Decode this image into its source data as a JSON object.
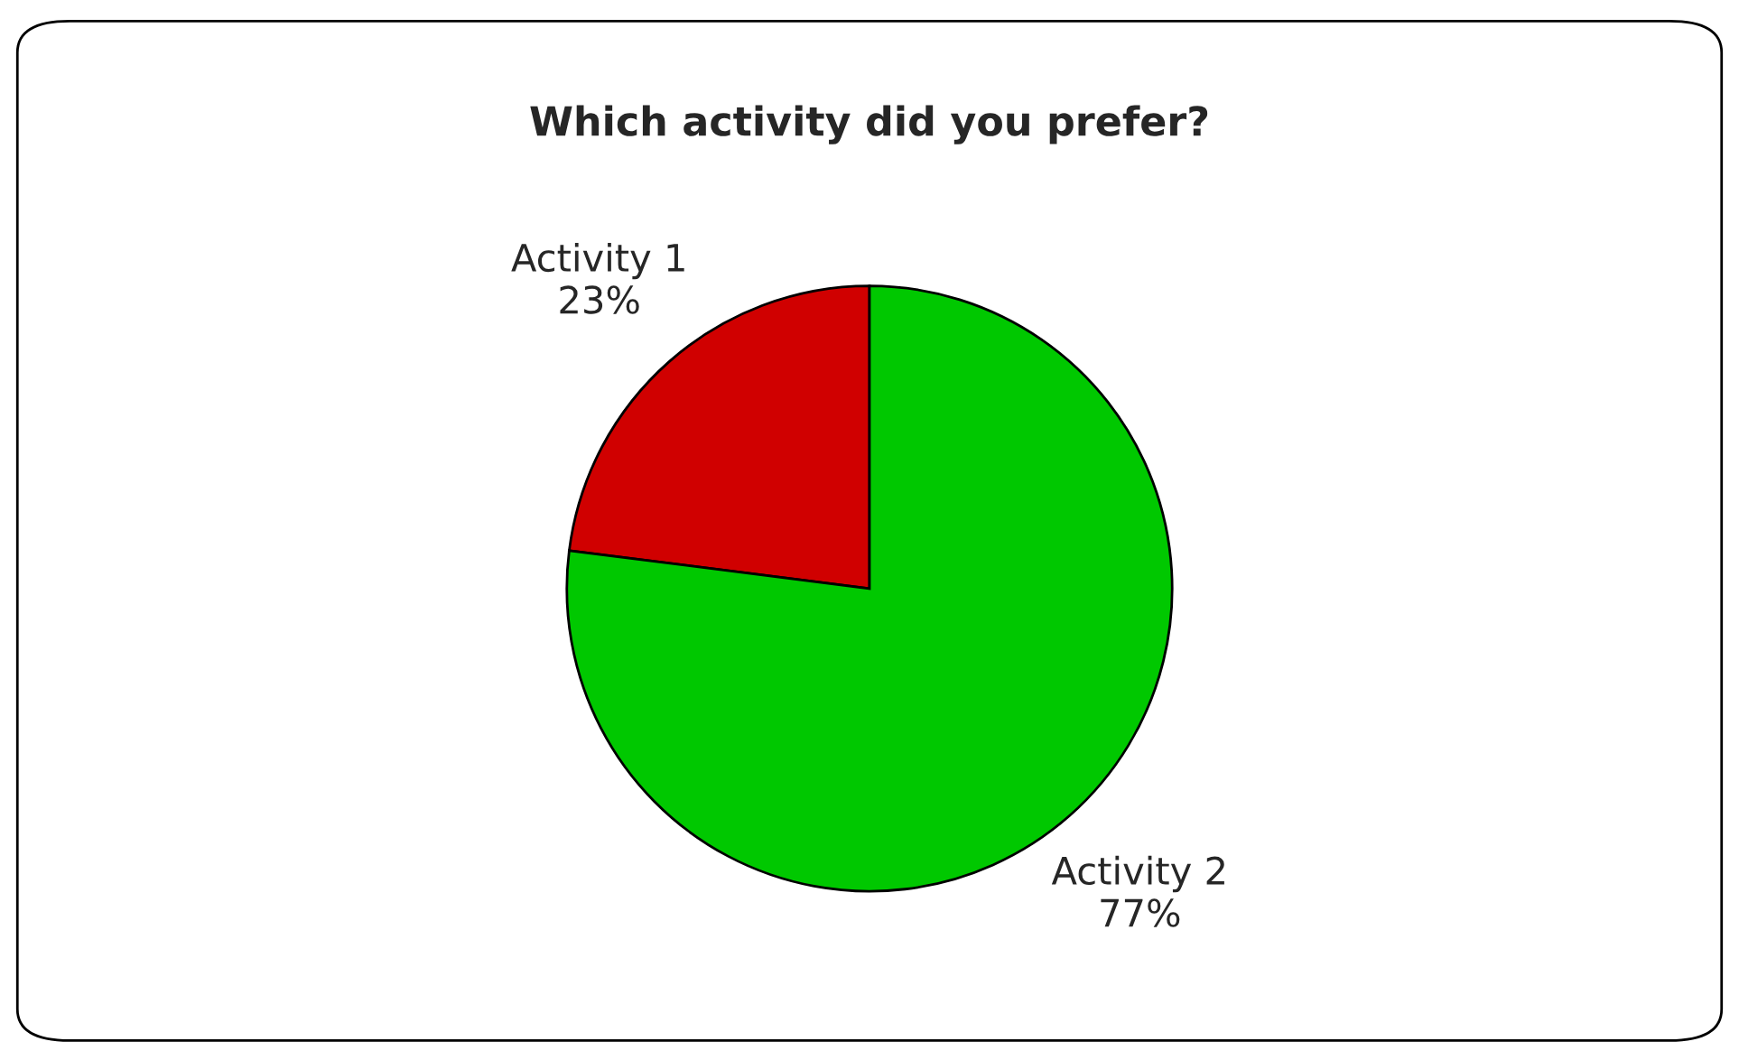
{
  "chart_data": {
    "type": "pie",
    "title": "Which activity did you prefer?",
    "categories": [
      "Activity 1",
      "Activity 2"
    ],
    "values": [
      23,
      77
    ],
    "colors": [
      "#d00000",
      "#00c800"
    ],
    "value_labels": [
      "23%",
      "77%"
    ],
    "legend": false
  }
}
